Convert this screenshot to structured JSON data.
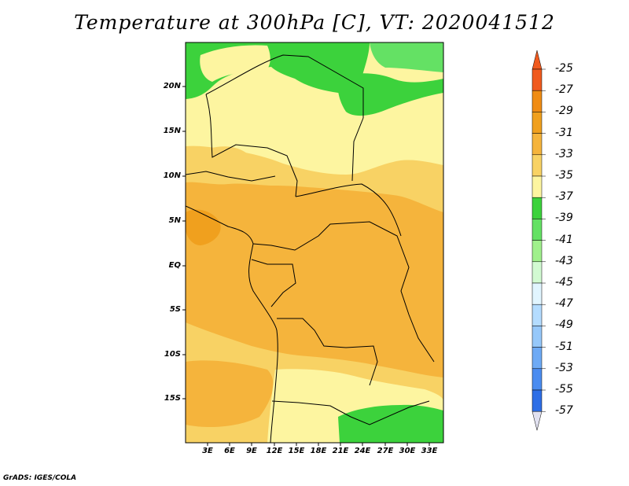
{
  "title": "Temperature at 300hPa [C], VT: 2020041512",
  "credit": "GrADS: IGES/COLA",
  "map": {
    "lat_labels": [
      "20N",
      "15N",
      "10N",
      "5N",
      "EQ",
      "5S",
      "10S",
      "15S"
    ],
    "lon_labels": [
      "3E",
      "6E",
      "9E",
      "12E",
      "15E",
      "18E",
      "21E",
      "24E",
      "27E",
      "30E",
      "33E"
    ]
  },
  "colorbar": {
    "labels": [
      "-25",
      "-27",
      "-29",
      "-31",
      "-33",
      "-35",
      "-37",
      "-39",
      "-41",
      "-43",
      "-45",
      "-47",
      "-49",
      "-51",
      "-53",
      "-55",
      "-57"
    ],
    "colors": [
      "#f05a1e",
      "#f08c14",
      "#f0a01e",
      "#f5b43c",
      "#f8d264",
      "#fdf5a0",
      "#3cd23c",
      "#64e164",
      "#a0f08c",
      "#d2fad2",
      "#e1f5ff",
      "#b4dcff",
      "#96c8fa",
      "#6eaaf5",
      "#4b8cf0",
      "#2d6ee6",
      "#1e50c8",
      "#0a3296",
      "#0a0a64"
    ],
    "top_arrow_color": "#f05a1e",
    "bottom_arrow_color": "#e1e1f0"
  }
}
